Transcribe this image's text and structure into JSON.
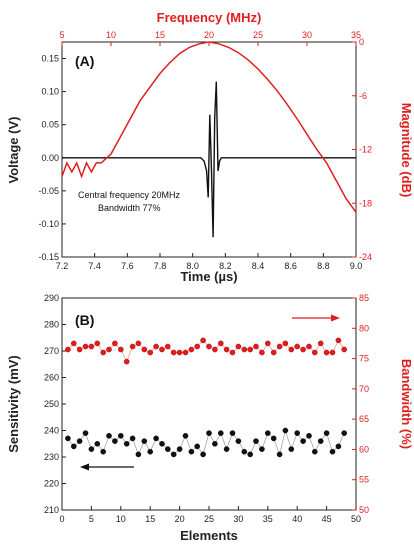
{
  "chart_data": [
    {
      "panel": "(A)",
      "type": "line",
      "xlabel": "Time (µs)",
      "ylabel": "Voltage (V)",
      "xlim": [
        7.2,
        9.0
      ],
      "ylim": [
        -0.15,
        0.175
      ],
      "x_ticks": [
        "7.2",
        "7.4",
        "7.6",
        "7.8",
        "8.0",
        "8.2",
        "8.4",
        "8.6",
        "8.8",
        "9.0"
      ],
      "y_ticks": [
        "-0.15",
        "-0.10",
        "-0.05",
        "0.00",
        "0.05",
        "0.10",
        "0.15"
      ],
      "x2label": "Frequency (MHz)",
      "x2lim": [
        5,
        35
      ],
      "x2_ticks": [
        "5",
        "10",
        "15",
        "20",
        "25",
        "30",
        "35"
      ],
      "y2label": "Magnitude (dB)",
      "y2lim": [
        -24,
        0
      ],
      "y2_ticks": [
        "-24",
        "-18",
        "-12",
        "-6",
        "0"
      ],
      "annotations": [
        "Central frequency 20MHz",
        "Bandwidth 77%"
      ],
      "series": [
        {
          "axis": "time-voltage",
          "color": "#111111",
          "x": [
            7.2,
            8.0,
            8.05,
            8.07,
            8.085,
            8.095,
            8.105,
            8.115,
            8.125,
            8.135,
            8.145,
            8.155,
            8.165,
            8.175,
            8.19,
            8.21,
            8.3,
            9.0
          ],
          "y": [
            0.0,
            0.0,
            0.0,
            -0.005,
            -0.02,
            -0.06,
            0.065,
            -0.02,
            -0.12,
            0.06,
            0.115,
            -0.02,
            -0.005,
            0.0,
            0.0,
            0.0,
            0.0,
            0.0
          ]
        },
        {
          "axis": "frequency-magnitude",
          "color": "#e01e1e",
          "x": [
            5,
            5.5,
            6,
            6.5,
            7,
            7.5,
            8,
            8.5,
            9,
            10,
            11,
            12,
            13,
            14,
            15,
            16,
            17,
            18,
            19,
            20,
            21,
            22,
            23,
            24,
            25,
            26,
            27,
            28,
            29,
            30,
            31,
            32,
            33,
            34,
            35
          ],
          "y": [
            -15,
            -13.5,
            -14.5,
            -13.5,
            -15,
            -13.5,
            -14.5,
            -13.5,
            -13.5,
            -12.5,
            -10.5,
            -8.5,
            -6.5,
            -5,
            -3.5,
            -2.3,
            -1.3,
            -0.6,
            -0.2,
            0,
            -0.2,
            -0.6,
            -1.2,
            -2,
            -3,
            -4.2,
            -5.5,
            -7,
            -8.6,
            -10.3,
            -12,
            -13.5,
            -15.5,
            -17.5,
            -19
          ]
        }
      ]
    },
    {
      "panel": "(B)",
      "type": "scatter",
      "xlabel": "Elements",
      "ylabel": "Sensitivity (mV)",
      "xlim": [
        0,
        50
      ],
      "ylim": [
        210,
        290
      ],
      "x_ticks": [
        "0",
        "5",
        "10",
        "15",
        "20",
        "25",
        "30",
        "35",
        "40",
        "45",
        "50"
      ],
      "y_ticks": [
        "210",
        "220",
        "230",
        "240",
        "250",
        "260",
        "270",
        "280",
        "290"
      ],
      "y2label": "Bandwidth (%)",
      "y2lim": [
        50,
        85
      ],
      "y2_ticks": [
        "50",
        "55",
        "60",
        "65",
        "70",
        "75",
        "80",
        "85"
      ],
      "series": [
        {
          "axis": "sensitivity",
          "color": "#111111",
          "x": [
            1,
            2,
            3,
            4,
            5,
            6,
            7,
            8,
            9,
            10,
            11,
            12,
            13,
            14,
            15,
            16,
            17,
            18,
            19,
            20,
            21,
            22,
            23,
            24,
            25,
            26,
            27,
            28,
            29,
            30,
            31,
            32,
            33,
            34,
            35,
            36,
            37,
            38,
            39,
            40,
            41,
            42,
            43,
            44,
            45,
            46,
            47,
            48
          ],
          "y": [
            237,
            234,
            236,
            239,
            233,
            235,
            232,
            238,
            236,
            238,
            235,
            237,
            231,
            236,
            232,
            237,
            235,
            233,
            231,
            233,
            238,
            232,
            234,
            231,
            239,
            235,
            239,
            233,
            239,
            236,
            232,
            231,
            236,
            233,
            239,
            237,
            231,
            240,
            233,
            239,
            236,
            238,
            232,
            236,
            239,
            232,
            234,
            239
          ]
        },
        {
          "axis": "bandwidth",
          "color": "#e01e1e",
          "x": [
            1,
            2,
            3,
            4,
            5,
            6,
            7,
            8,
            9,
            10,
            11,
            12,
            13,
            14,
            15,
            16,
            17,
            18,
            19,
            20,
            21,
            22,
            23,
            24,
            25,
            26,
            27,
            28,
            29,
            30,
            31,
            32,
            33,
            34,
            35,
            36,
            37,
            38,
            39,
            40,
            41,
            42,
            43,
            44,
            45,
            46,
            47,
            48
          ],
          "y": [
            76.5,
            77.5,
            76.5,
            77,
            77,
            77.5,
            76,
            76.5,
            77.5,
            76.5,
            74.5,
            77,
            77.5,
            76.5,
            76,
            77,
            76.5,
            77,
            76,
            76,
            76,
            76.5,
            77,
            78,
            77,
            76.5,
            77.5,
            76.5,
            76,
            77,
            76.5,
            76.5,
            77,
            76,
            77.5,
            76,
            77,
            77.5,
            76.5,
            77,
            76.5,
            77,
            76,
            77.5,
            76,
            76,
            78,
            76.5
          ]
        }
      ]
    }
  ]
}
